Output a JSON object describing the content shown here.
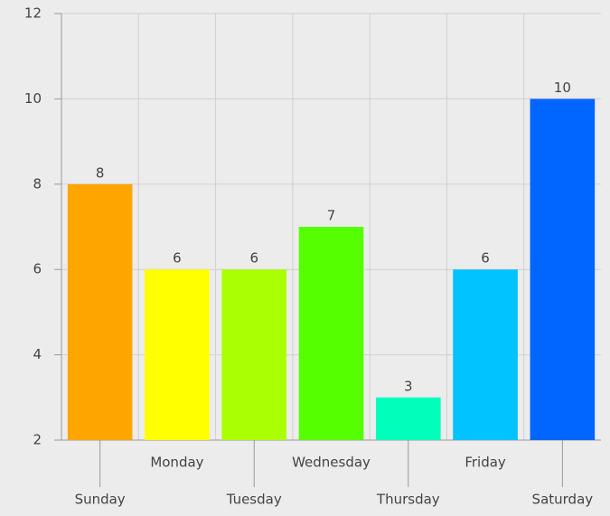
{
  "chart_data": {
    "type": "bar",
    "categories": [
      "Sunday",
      "Monday",
      "Tuesday",
      "Wednesday",
      "Thursday",
      "Friday",
      "Saturday"
    ],
    "values": [
      8,
      6,
      6,
      7,
      3,
      6,
      10
    ],
    "colors": [
      "#ffa500",
      "#ffff00",
      "#aaff00",
      "#55ff00",
      "#00ffbb",
      "#00c3ff",
      "#0066ff"
    ],
    "ylim": [
      2,
      12
    ],
    "yticks": [
      2,
      4,
      6,
      8,
      10,
      12
    ],
    "grid": true
  }
}
